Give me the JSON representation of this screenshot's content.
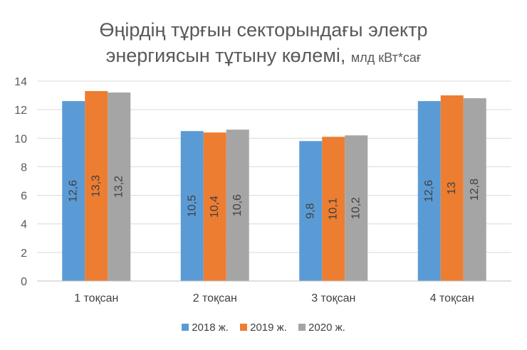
{
  "chart_data": {
    "type": "bar",
    "title_line1": "Өңірдің тұрғын секторындағы электр",
    "title_line2": "энергиясын тұтыну көлемі,",
    "title_unit": "млд кВт*сағ",
    "categories": [
      "1 тоқсан",
      "2 тоқсан",
      "3 тоқсан",
      "4 тоқсан"
    ],
    "series": [
      {
        "name": "2018 ж.",
        "color": "#5B9BD5",
        "values": [
          12.6,
          10.5,
          9.8,
          12.6
        ],
        "labels": [
          "12,6",
          "10,5",
          "9,8",
          "12,6"
        ]
      },
      {
        "name": "2019 ж.",
        "color": "#ED7D31",
        "values": [
          13.3,
          10.4,
          10.1,
          13.0
        ],
        "labels": [
          "13,3",
          "10,4",
          "10,1",
          "13"
        ]
      },
      {
        "name": "2020 ж.",
        "color": "#A5A5A5",
        "values": [
          13.2,
          10.6,
          10.2,
          12.8
        ],
        "labels": [
          "13,2",
          "10,6",
          "10,2",
          "12,8"
        ]
      }
    ],
    "yticks": [
      "0",
      "2",
      "4",
      "6",
      "8",
      "10",
      "12",
      "14"
    ],
    "ylim": [
      0,
      14
    ],
    "grid": true,
    "legend": "bottom"
  }
}
